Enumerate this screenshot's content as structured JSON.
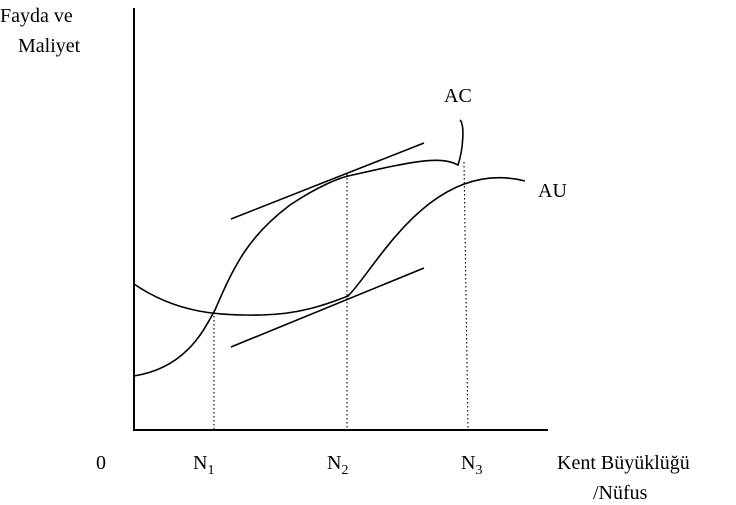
{
  "y_axis_label": [
    "Fayda ve",
    "Maliyet"
  ],
  "x_axis_label": [
    "Kent Büyüklüğü",
    "/Nüfus"
  ],
  "origin_label": "0",
  "curves": {
    "ac_label": "AC",
    "au_label": "AU"
  },
  "ticks": [
    {
      "main": "N",
      "sub": "1"
    },
    {
      "main": "N",
      "sub": "2"
    },
    {
      "main": "N",
      "sub": "3"
    }
  ]
}
